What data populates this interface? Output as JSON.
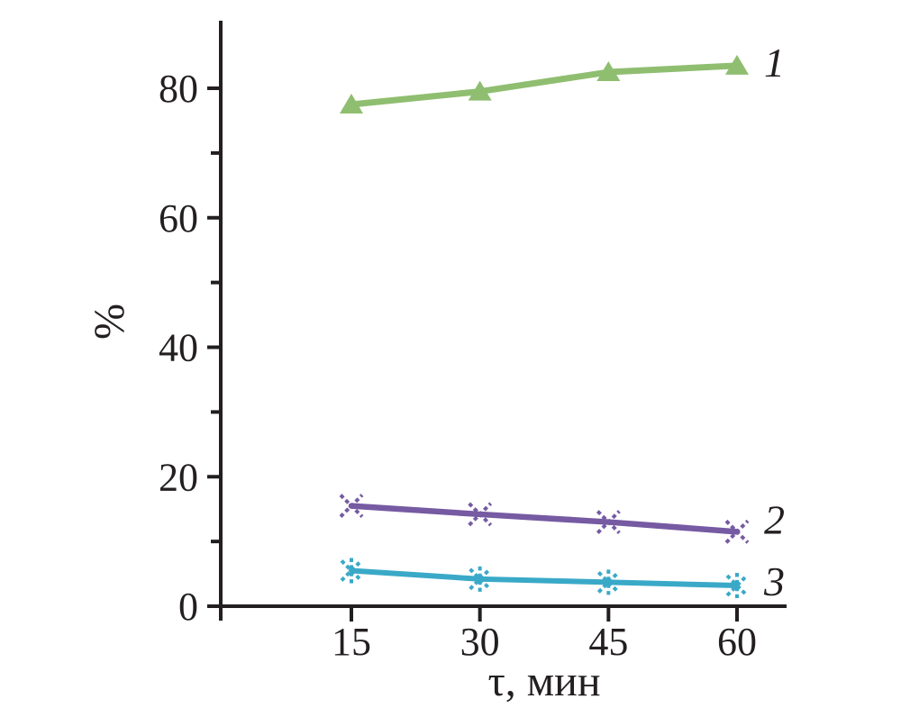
{
  "figure": {
    "background": "#ffffff",
    "text_color": "#231f20",
    "axis_color": "#231f20"
  },
  "chart_data": {
    "type": "line",
    "title": "",
    "xlabel": "τ, мин",
    "ylabel": "%",
    "x": [
      15,
      30,
      45,
      60
    ],
    "x_tick_labels": [
      "15",
      "30",
      "45",
      "60"
    ],
    "y_major_ticks": [
      0,
      20,
      40,
      60,
      80
    ],
    "y_minor_ticks": [
      10,
      30,
      50,
      70
    ],
    "xlim": [
      0,
      66.5
    ],
    "ylim": [
      0,
      90.5
    ],
    "grid": false,
    "legend_position": "labels-right-of-last-point",
    "series": [
      {
        "label": "1",
        "marker": "filled-triangle-up",
        "color": "#8fbe70",
        "values": [
          77.5,
          79.5,
          82.5,
          83.5
        ]
      },
      {
        "label": "2",
        "marker": "dotted-x-cross",
        "color": "#765aa2",
        "values": [
          15.5,
          14.2,
          13.0,
          11.5
        ]
      },
      {
        "label": "3",
        "marker": "dotted-asterisk",
        "color": "#3aa9c8",
        "values": [
          5.5,
          4.2,
          3.7,
          3.2
        ]
      }
    ]
  }
}
